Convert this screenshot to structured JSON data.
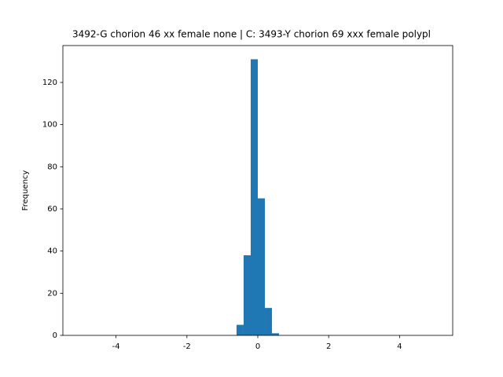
{
  "chart_data": {
    "type": "histogram",
    "title": "3492-G chorion 46 xx female none | C: 3493-Y chorion 69 xxx female polypl",
    "y_label": "Frequency",
    "bins": [
      -0.6,
      -0.4,
      -0.2,
      0,
      0.2,
      0.4,
      0.6
    ],
    "counts": [
      5,
      38,
      131,
      65,
      13,
      1
    ],
    "color": "#1f77b4",
    "xlim": [
      -5.5,
      5.5
    ],
    "xticks": [
      -4,
      -2,
      0,
      2,
      4
    ],
    "ylim": [
      0,
      137.5
    ],
    "yticks": [
      0,
      20,
      40,
      60,
      80,
      100,
      120
    ]
  }
}
